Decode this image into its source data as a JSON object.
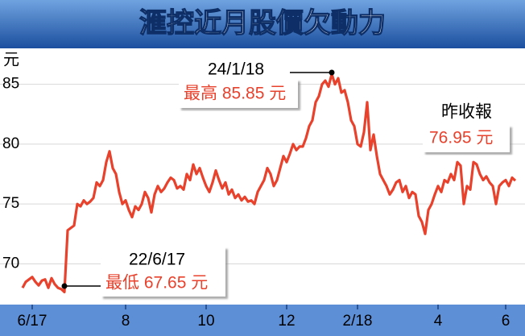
{
  "chart_data": {
    "type": "line",
    "title": "滙控近月股價欠動力",
    "y_label": "元",
    "series": [
      {
        "name": null,
        "color": "#e8412c",
        "values": [
          68.0,
          68.5,
          68.7,
          68.9,
          68.5,
          68.2,
          68.6,
          68.7,
          68.0,
          68.8,
          68.3,
          68.0,
          67.9,
          67.65,
          72.8,
          73.0,
          73.2,
          75.0,
          74.8,
          75.3,
          75.0,
          75.2,
          75.5,
          76.8,
          76.5,
          77.0,
          78.5,
          79.4,
          78.0,
          77.5,
          76.0,
          75.0,
          75.3,
          74.5,
          73.9,
          74.8,
          74.5,
          75.0,
          76.0,
          75.5,
          74.3,
          75.8,
          76.5,
          76.0,
          76.3,
          76.8,
          77.2,
          77.0,
          76.3,
          76.5,
          76.2,
          77.5,
          77.0,
          78.3,
          77.5,
          78.0,
          77.2,
          76.5,
          76.0,
          76.8,
          77.8,
          77.0,
          76.3,
          76.8,
          75.8,
          76.2,
          75.5,
          75.8,
          75.3,
          75.6,
          75.2,
          75.3,
          75.0,
          76.0,
          76.5,
          77.0,
          78.0,
          77.5,
          76.5,
          77.0,
          78.0,
          79.0,
          78.5,
          79.2,
          80.0,
          79.5,
          79.8,
          79.8,
          80.5,
          81.5,
          82.0,
          83.5,
          84.0,
          85.0,
          85.3,
          84.8,
          85.85,
          85.0,
          85.5,
          84.3,
          84.5,
          83.5,
          82.0,
          81.5,
          80.0,
          79.8,
          81.0,
          83.5,
          79.5,
          80.8,
          79.0,
          77.5,
          77.0,
          76.5,
          75.8,
          76.2,
          76.8,
          77.0,
          76.0,
          76.5,
          75.5,
          76.0,
          75.8,
          74.0,
          73.5,
          72.5,
          74.5,
          75.0,
          75.8,
          76.5,
          76.0,
          77.0,
          76.8,
          77.5,
          77.0,
          78.5,
          78.2,
          75.0,
          76.5,
          76.2,
          78.5,
          78.3,
          77.5,
          77.0,
          77.3,
          76.8,
          76.5,
          75.0,
          76.5,
          76.8,
          77.0,
          76.5,
          77.2,
          76.95
        ]
      }
    ],
    "xlim": [
      0,
      153
    ],
    "xticks": [
      {
        "value": 3,
        "label": "6/17"
      },
      {
        "value": 32,
        "label": "8"
      },
      {
        "value": 57,
        "label": "10"
      },
      {
        "value": 82,
        "label": "12"
      },
      {
        "value": 104,
        "label": "2/18"
      },
      {
        "value": 129,
        "label": "4"
      },
      {
        "value": 150,
        "label": "6"
      }
    ],
    "ylim": [
      66.6,
      88
    ],
    "yticks": [
      70,
      75,
      80,
      85
    ],
    "grid": true,
    "annotations": {
      "high": {
        "date": "24/1/18",
        "label": "最高 85.85 元"
      },
      "low": {
        "date": "22/6/17",
        "label": "最低 67.65 元"
      },
      "close": {
        "date": "昨收報",
        "label": "76.95 元"
      }
    }
  }
}
